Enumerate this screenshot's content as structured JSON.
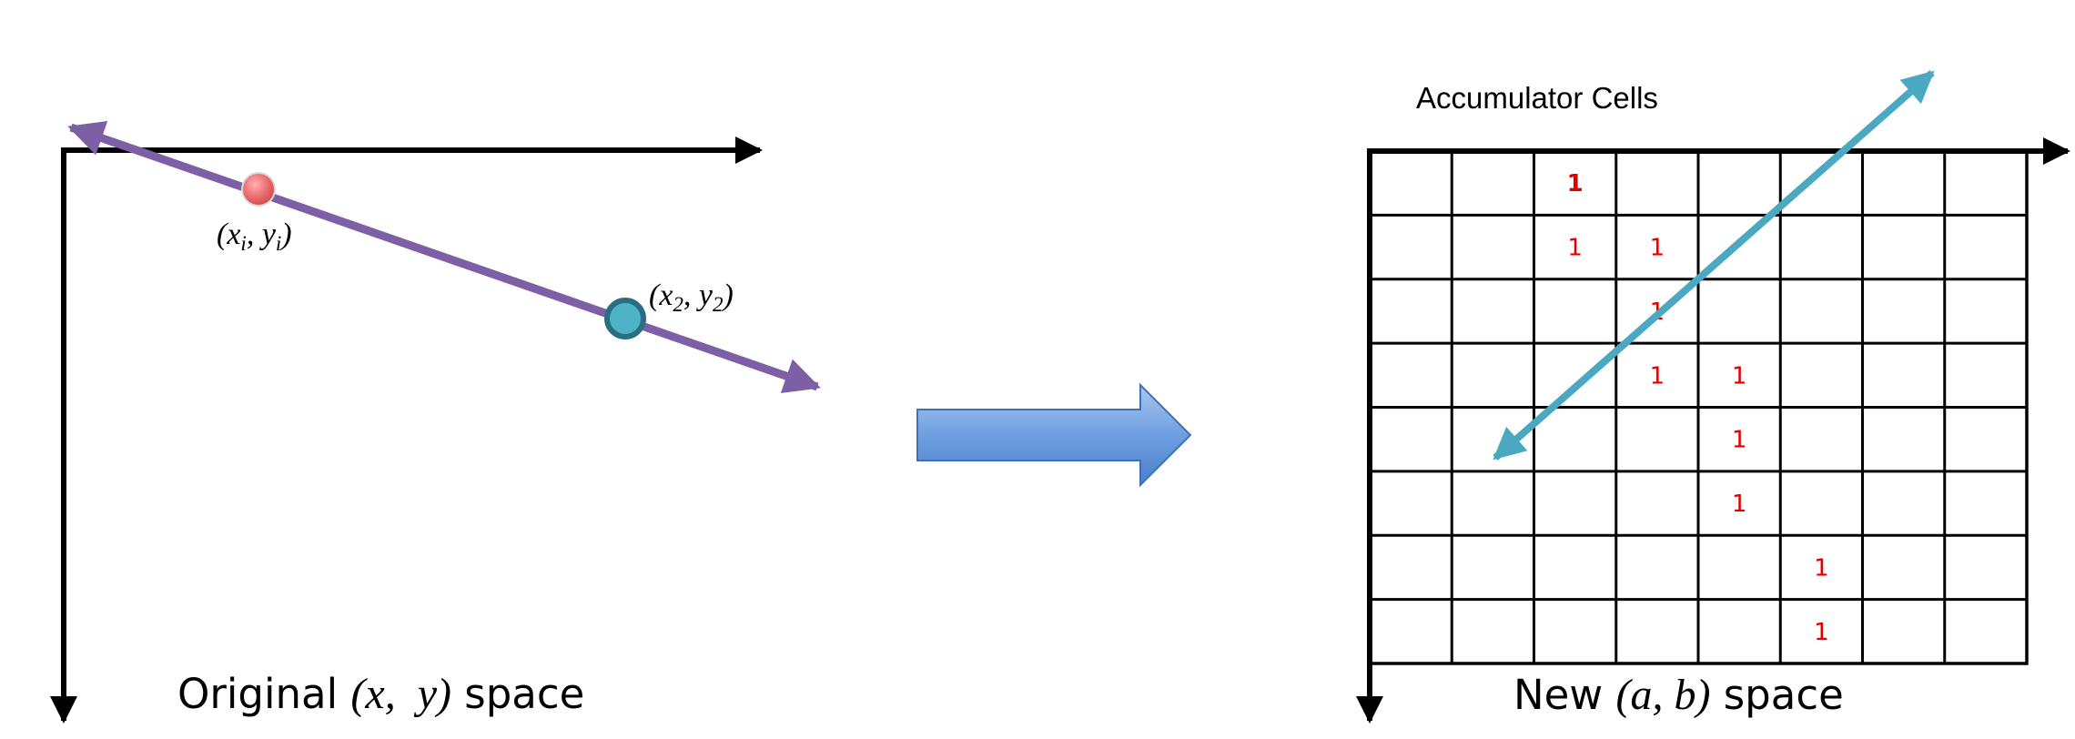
{
  "left_panel": {
    "point1": {
      "x_sym": "x",
      "x_sub": "i",
      "sep": ", ",
      "y_sym": "y",
      "y_sub": "i"
    },
    "point2": {
      "x_sym": "x",
      "x_sub": "2",
      "sep": ", ",
      "y_sym": "y",
      "y_sub": "2"
    },
    "caption": {
      "prefix": "Original ",
      "math": "(x,  y)",
      "suffix": " space"
    }
  },
  "right_panel": {
    "accumulator_label": "Accumulator Cells",
    "caption": {
      "prefix": "New ",
      "math": "(a, b)",
      "suffix": " space"
    },
    "grid": {
      "rows": 8,
      "cols": 8
    },
    "cells": [
      {
        "row": 0,
        "col": 2,
        "value": "1",
        "bold": true
      },
      {
        "row": 1,
        "col": 2,
        "value": "1"
      },
      {
        "row": 1,
        "col": 3,
        "value": "1"
      },
      {
        "row": 2,
        "col": 3,
        "value": "1"
      },
      {
        "row": 3,
        "col": 3,
        "value": "1"
      },
      {
        "row": 3,
        "col": 4,
        "value": "1"
      },
      {
        "row": 4,
        "col": 4,
        "value": "1"
      },
      {
        "row": 5,
        "col": 4,
        "value": "1"
      },
      {
        "row": 6,
        "col": 5,
        "value": "1"
      },
      {
        "row": 7,
        "col": 5,
        "value": "1"
      }
    ]
  },
  "colors": {
    "axis": "#000000",
    "image_line": "#7c5fa5",
    "point1_fill": "#e8676a",
    "point2_fill": "#4fb3c8",
    "point2_stroke": "#2a6e85",
    "parameter_line": "#4aa8c0",
    "transform_arrow": "#5b8fd6",
    "cell_value": "#e00000"
  }
}
